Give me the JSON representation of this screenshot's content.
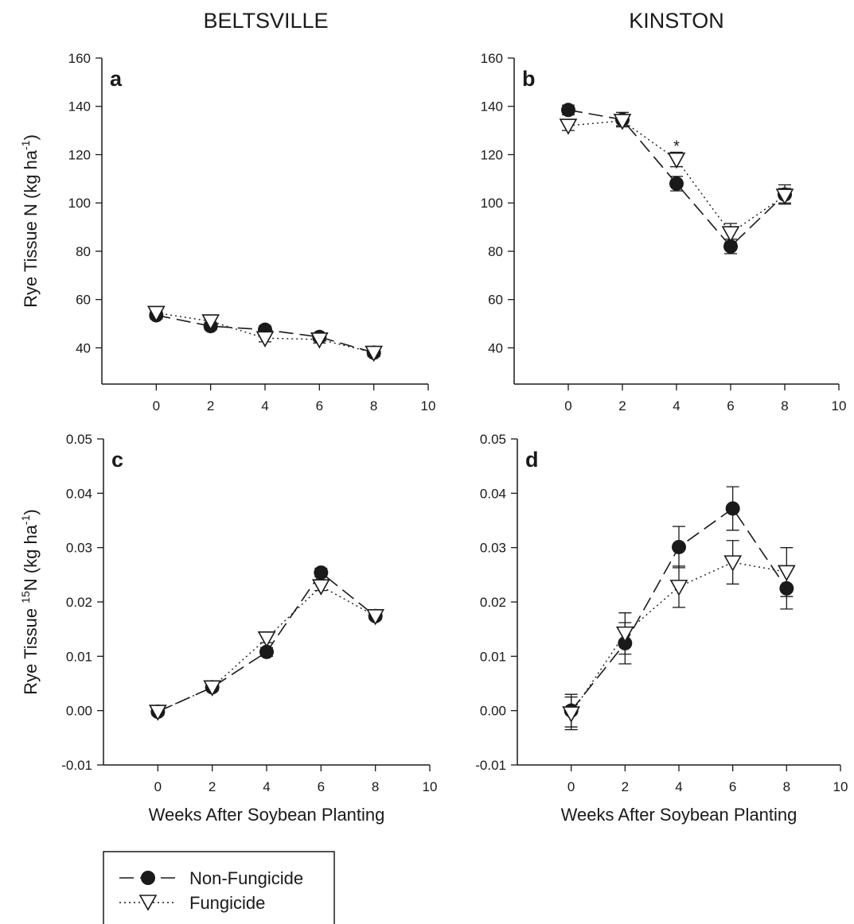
{
  "figure": {
    "column_titles": [
      "BELTSVILLE",
      "KINSTON"
    ],
    "legend": [
      {
        "label": "Non-Fungicide",
        "marker": "filled-circle",
        "line": "dashed",
        "color": "#1a1a1a"
      },
      {
        "label": "Fungicide",
        "marker": "open-triangle-down",
        "line": "dotted",
        "color": "#1a1a1a"
      }
    ]
  },
  "chart_data": [
    {
      "type": "line",
      "panel": "a",
      "title": "BELTSVILLE",
      "xlabel": "",
      "ylabel": "Rye Tissue N (kg ha",
      "ylabel_sup": "-1",
      "ylabel_suffix": ")",
      "xlim": [
        -2,
        10
      ],
      "ylim": [
        25,
        160
      ],
      "xticks": [
        0,
        2,
        4,
        6,
        8,
        10
      ],
      "xtick_labels": [
        "0",
        "2",
        "4",
        "6",
        "8",
        "10"
      ],
      "yticks": [
        40,
        60,
        80,
        100,
        120,
        140,
        160
      ],
      "ytick_labels": [
        "40",
        "60",
        "80",
        "100",
        "120",
        "140",
        "160"
      ],
      "x": [
        0,
        2,
        4,
        6,
        8
      ],
      "series": [
        {
          "name": "Non-Fungicide",
          "values": [
            53.5,
            49,
            47.5,
            44.5,
            38
          ],
          "errors": [
            1.5,
            1.5,
            1.5,
            1.5,
            1.5
          ]
        },
        {
          "name": "Fungicide",
          "values": [
            54.5,
            51,
            44,
            43.5,
            38
          ],
          "errors": [
            1.5,
            1.5,
            1.5,
            1.5,
            1.5
          ]
        }
      ],
      "annotations": []
    },
    {
      "type": "line",
      "panel": "b",
      "title": "KINSTON",
      "xlabel": "",
      "ylabel": "",
      "xlim": [
        -2,
        10
      ],
      "ylim": [
        25,
        160
      ],
      "xticks": [
        0,
        2,
        4,
        6,
        8,
        10
      ],
      "xtick_labels": [
        "0",
        "2",
        "4",
        "6",
        "8",
        "10"
      ],
      "yticks": [
        40,
        60,
        80,
        100,
        120,
        140,
        160
      ],
      "ytick_labels": [
        "40",
        "60",
        "80",
        "100",
        "120",
        "140",
        "160"
      ],
      "x": [
        0,
        2,
        4,
        6,
        8
      ],
      "series": [
        {
          "name": "Non-Fungicide",
          "values": [
            138.5,
            134.5,
            108,
            82,
            103.5
          ],
          "errors": [
            2,
            3,
            3,
            3,
            4
          ]
        },
        {
          "name": "Fungicide",
          "values": [
            132,
            134,
            118,
            87.5,
            103
          ],
          "errors": [
            2,
            2,
            3,
            4,
            3
          ]
        }
      ],
      "annotations": [
        {
          "text": "*",
          "x": 4,
          "y": 124
        }
      ]
    },
    {
      "type": "line",
      "panel": "c",
      "title": "",
      "xlabel": "Weeks After Soybean Planting",
      "ylabel": "Rye Tissue ",
      "ylabel_sup": "15",
      "ylabel_suffix": "N (kg ha",
      "ylabel_sup2": "-1",
      "ylabel_suffix2": ")",
      "xlim": [
        -2,
        10
      ],
      "ylim": [
        -0.01,
        0.05
      ],
      "xticks": [
        0,
        2,
        4,
        6,
        8,
        10
      ],
      "xtick_labels": [
        "0",
        "2",
        "4",
        "6",
        "8",
        "10"
      ],
      "yticks": [
        -0.01,
        0.0,
        0.01,
        0.02,
        0.03,
        0.04,
        0.05
      ],
      "ytick_labels": [
        "-0.01",
        "0.00",
        "0.01",
        "0.02",
        "0.03",
        "0.04",
        "0.05"
      ],
      "x": [
        0,
        2,
        4,
        6,
        8
      ],
      "series": [
        {
          "name": "Non-Fungicide",
          "values": [
            -0.0002,
            0.0043,
            0.0108,
            0.0254,
            0.0174
          ],
          "errors": [
            0.0006,
            0.0006,
            0.0008,
            0.0008,
            0.0006
          ]
        },
        {
          "name": "Fungicide",
          "values": [
            -0.0002,
            0.0043,
            0.0133,
            0.0229,
            0.0174
          ],
          "errors": [
            0.0006,
            0.0006,
            0.0008,
            0.0008,
            0.0006
          ]
        }
      ],
      "annotations": []
    },
    {
      "type": "line",
      "panel": "d",
      "title": "",
      "xlabel": "Weeks After Soybean Planting",
      "ylabel": "",
      "xlim": [
        -2,
        10
      ],
      "ylim": [
        -0.01,
        0.05
      ],
      "xticks": [
        0,
        2,
        4,
        6,
        8,
        10
      ],
      "xtick_labels": [
        "0",
        "2",
        "4",
        "6",
        "8",
        "10"
      ],
      "yticks": [
        -0.01,
        0.0,
        0.01,
        0.02,
        0.03,
        0.04,
        0.05
      ],
      "ytick_labels": [
        "-0.01",
        "0.00",
        "0.01",
        "0.02",
        "0.03",
        "0.04",
        "0.05"
      ],
      "x": [
        0,
        2,
        4,
        6,
        8
      ],
      "series": [
        {
          "name": "Non-Fungicide",
          "values": [
            0.0,
            0.0124,
            0.0301,
            0.0372,
            0.0225
          ],
          "errors": [
            0.003,
            0.0038,
            0.0038,
            0.004,
            0.0038
          ]
        },
        {
          "name": "Fungicide",
          "values": [
            -0.0005,
            0.0142,
            0.0228,
            0.0273,
            0.0255
          ],
          "errors": [
            0.003,
            0.0038,
            0.0038,
            0.004,
            0.0045
          ]
        }
      ],
      "annotations": []
    }
  ]
}
